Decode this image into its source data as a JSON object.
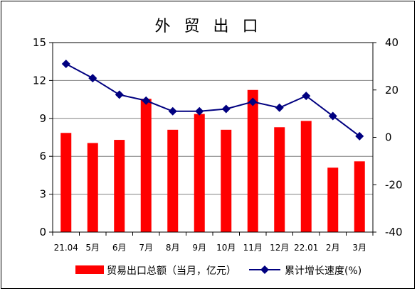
{
  "chart_data": {
    "type": "bar+line",
    "title": "外 贸 出 口",
    "categories": [
      "21.04",
      "5月",
      "6月",
      "7月",
      "8月",
      "9月",
      "10月",
      "11月",
      "12月",
      "22.01",
      "2月",
      "3月"
    ],
    "series": [
      {
        "name": "贸易出口总额（当月，亿元）",
        "type": "bar",
        "axis": "left",
        "color": "#ff0000",
        "values": [
          7.85,
          7.05,
          7.3,
          10.55,
          8.1,
          9.35,
          8.1,
          11.25,
          8.3,
          8.8,
          5.1,
          5.6
        ]
      },
      {
        "name": "累计增长速度(%)",
        "type": "line",
        "axis": "right",
        "color": "#000080",
        "marker": "diamond",
        "values": [
          31,
          25,
          18,
          15.5,
          11,
          11,
          12,
          15,
          12.5,
          17.5,
          9,
          0.5
        ]
      }
    ],
    "y_left": {
      "ticks": [
        "0",
        "3",
        "6",
        "9",
        "12",
        "15"
      ],
      "ylim": [
        0,
        15
      ]
    },
    "y_right": {
      "ticks": [
        "-40",
        "-20",
        "0",
        "20",
        "40"
      ],
      "ylim": [
        -40,
        40
      ]
    },
    "grid": true,
    "legend_position": "bottom"
  }
}
